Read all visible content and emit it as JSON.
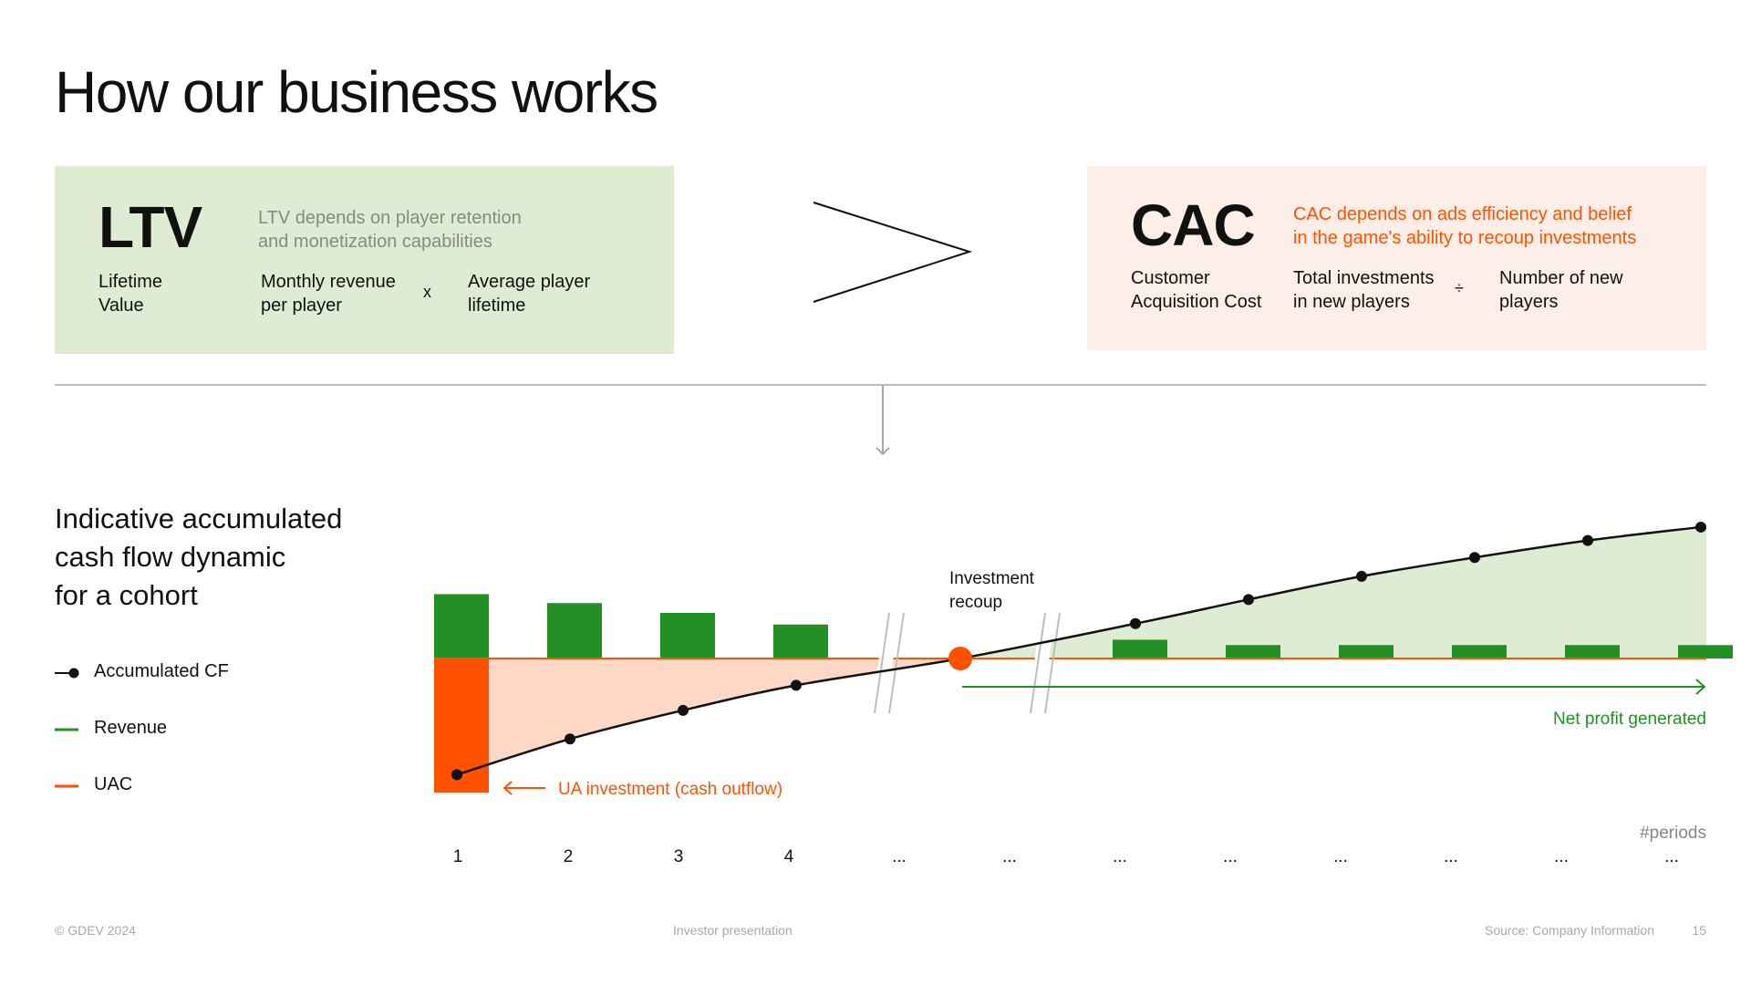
{
  "page": {
    "title": "How our business works",
    "footer_left": "© GDEV 2024",
    "footer_center": "Investor presentation",
    "footer_source": "Source: Company Information",
    "page_number": "15"
  },
  "ltv": {
    "abbr": "LTV",
    "name_line1": "Lifetime",
    "name_line2": "Value",
    "desc_line1": "LTV depends on player retention",
    "desc_line2": "and monetization capabilities",
    "factor1_line1": "Monthly revenue",
    "factor1_line2": "per player",
    "operator": "x",
    "factor2_line1": "Average player",
    "factor2_line2": "lifetime"
  },
  "cac": {
    "abbr": "CAC",
    "name_line1": "Customer",
    "name_line2": "Acquisition Cost",
    "desc_line1": "CAC depends on ads efficiency and belief",
    "desc_line2": "in the game's ability to recoup investments",
    "factor1_line1": "Total investments",
    "factor1_line2": "in new players",
    "operator": "÷",
    "factor2_line1": "Number of new",
    "factor2_line2": "players"
  },
  "section": {
    "title_line1": "Indicative accumulated",
    "title_line2": "cash flow dynamic",
    "title_line3": "for a cohort"
  },
  "legend": [
    {
      "label": "Accumulated CF",
      "color": "#111111"
    },
    {
      "label": "Revenue",
      "color": "#248f24"
    },
    {
      "label": "UAC",
      "color": "#ff5100"
    }
  ],
  "colors": {
    "revenue": "#248f24",
    "uac": "#ff5100",
    "cf_line": "#111111",
    "negative_area": "#fdd8c6",
    "positive_area": "#deecd4",
    "ltv_panel": "#deecd4",
    "cac_panel": "#fdefe7",
    "cac_text": "#ff5100"
  },
  "chart_data": {
    "type": "bar",
    "title": "Indicative accumulated cash flow dynamic for a cohort",
    "xlabel": "#periods",
    "categories": [
      "1",
      "2",
      "3",
      "4",
      "...",
      "...",
      "...",
      "...",
      "...",
      "...",
      "...",
      "..."
    ],
    "series": [
      {
        "name": "Revenue",
        "values": [
          72,
          62,
          51,
          38,
          null,
          null,
          21,
          15,
          15,
          15,
          15,
          15
        ]
      },
      {
        "name": "UAC",
        "values": [
          -150,
          0,
          0,
          0,
          null,
          null,
          0,
          0,
          0,
          0,
          0,
          0
        ]
      },
      {
        "name": "Accumulated CF",
        "values": [
          -130,
          -90,
          -58,
          -30,
          null,
          null,
          39,
          66,
          92,
          113,
          132,
          147
        ]
      }
    ],
    "recoup_point": {
      "label_line1": "Investment",
      "label_line2": "recoup",
      "value": 0
    },
    "annotations": {
      "ua_investment": "UA investment (cash outflow)",
      "net_profit": "Net profit generated"
    },
    "axis_break": true,
    "legend": "left"
  }
}
